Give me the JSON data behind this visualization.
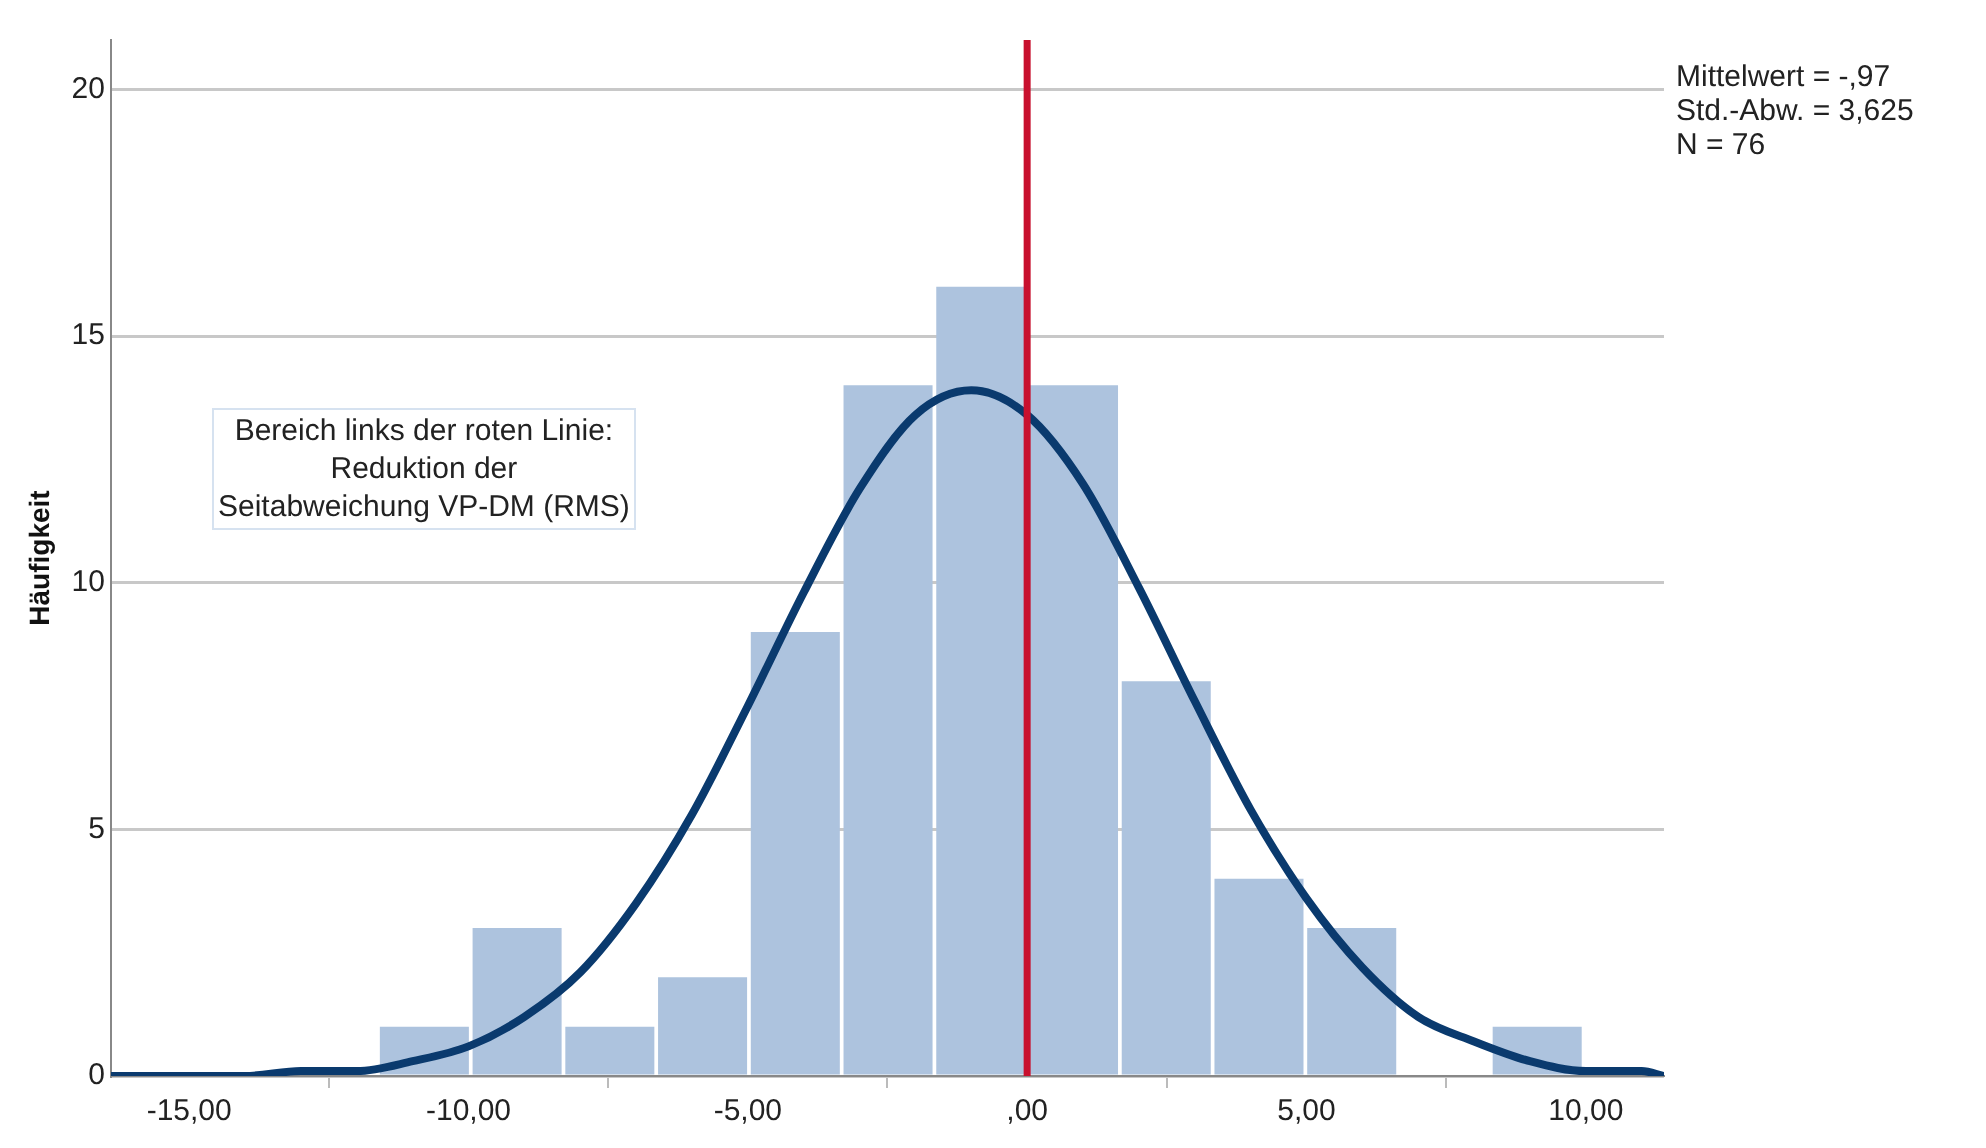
{
  "chart_data": {
    "type": "histogram",
    "ylabel": "Häufigkeit",
    "bins": [
      -11.62,
      -9.96,
      -8.3,
      -6.64,
      -4.98,
      -3.32,
      -1.66,
      0,
      1.66,
      3.32,
      4.98,
      6.64,
      8.3,
      9.96
    ],
    "values": [
      1,
      3,
      1,
      2,
      9,
      14,
      16,
      14,
      8,
      4,
      3,
      0,
      1
    ],
    "color": "#adc3de",
    "series": [
      {
        "type": "line",
        "color": "#0a3a6e",
        "x": [
          -16.4,
          -16,
          -14,
          -13,
          -12,
          -11,
          -10,
          -9,
          -8,
          -7,
          -6,
          -5,
          -4,
          -3,
          -2,
          -1,
          0,
          1,
          2,
          3,
          4,
          5,
          6,
          7,
          8,
          9,
          10,
          11,
          11.4
        ],
        "values": [
          0,
          0,
          0,
          0.1,
          0.1,
          0.3,
          0.6,
          1.2,
          2.1,
          3.5,
          5.3,
          7.5,
          9.8,
          11.9,
          13.4,
          13.9,
          13.4,
          12,
          9.9,
          7.6,
          5.4,
          3.6,
          2.2,
          1.2,
          0.7,
          0.3,
          0.1,
          0.1,
          0
        ]
      }
    ],
    "marker": "none",
    "xlim": [
      -16.4,
      11.4
    ],
    "xticks": [
      {
        "value": -15,
        "label": "-15,00"
      },
      {
        "value": -10,
        "label": "-10,00"
      },
      {
        "value": -5,
        "label": "-5,00"
      },
      {
        "value": 0,
        "label": ",00"
      },
      {
        "value": 5,
        "label": "5,00"
      },
      {
        "value": 10,
        "label": "10,00"
      }
    ],
    "ylim": [
      0,
      21
    ],
    "yticks": [
      0,
      5,
      10,
      15,
      20
    ],
    "grid": "y",
    "ref_lines": [
      {
        "axis": "x",
        "value": 0,
        "color": "#c8102e"
      }
    ],
    "annotations": [
      "Bereich links der roten Linie:\nReduktion der\nSeitabweichung VP-DM (RMS)",
      "Mittelwert = -,97\nStd.-Abw. = 3,625\nN = 76"
    ]
  }
}
